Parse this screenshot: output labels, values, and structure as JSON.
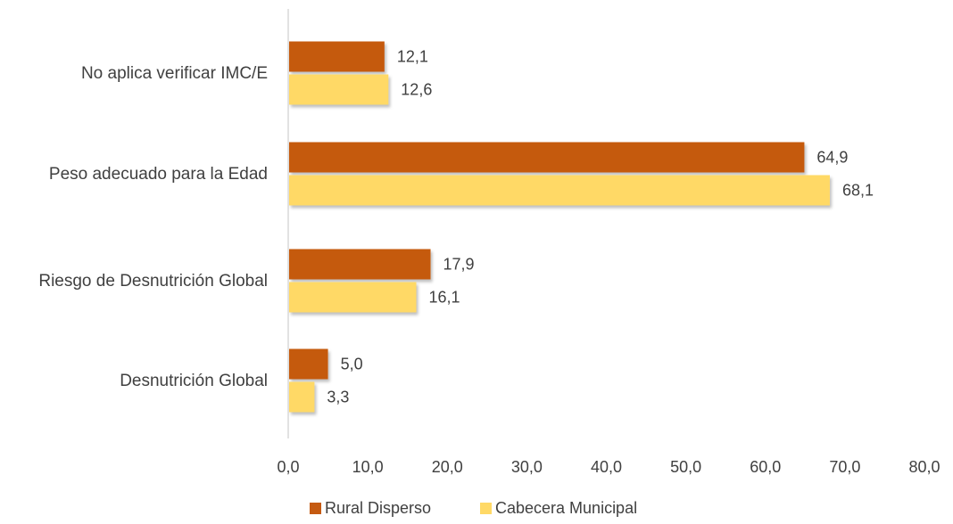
{
  "chart_data": {
    "type": "bar",
    "orientation": "horizontal",
    "categories": [
      "No aplica verificar IMC/E",
      "Peso adecuado para la Edad",
      "Riesgo de Desnutrición Global",
      "Desnutrición Global"
    ],
    "series": [
      {
        "name": "Rural Disperso",
        "values": [
          12.1,
          64.9,
          17.9,
          5.0
        ],
        "labels": [
          "12,1",
          "64,9",
          "17,9",
          "5,0"
        ],
        "color": "#c55a11"
      },
      {
        "name": "Cabecera Municipal",
        "values": [
          12.6,
          68.1,
          16.1,
          3.3
        ],
        "labels": [
          "12,6",
          "68,1",
          "16,1",
          "3,3"
        ],
        "color": "#ffd966"
      }
    ],
    "xlim": [
      0,
      80
    ],
    "xticks": [
      "0,0",
      "10,0",
      "20,0",
      "30,0",
      "40,0",
      "50,0",
      "60,0",
      "70,0",
      "80,0"
    ],
    "grid": false,
    "legend_position": "bottom",
    "title": "",
    "xlabel": "",
    "ylabel": ""
  }
}
